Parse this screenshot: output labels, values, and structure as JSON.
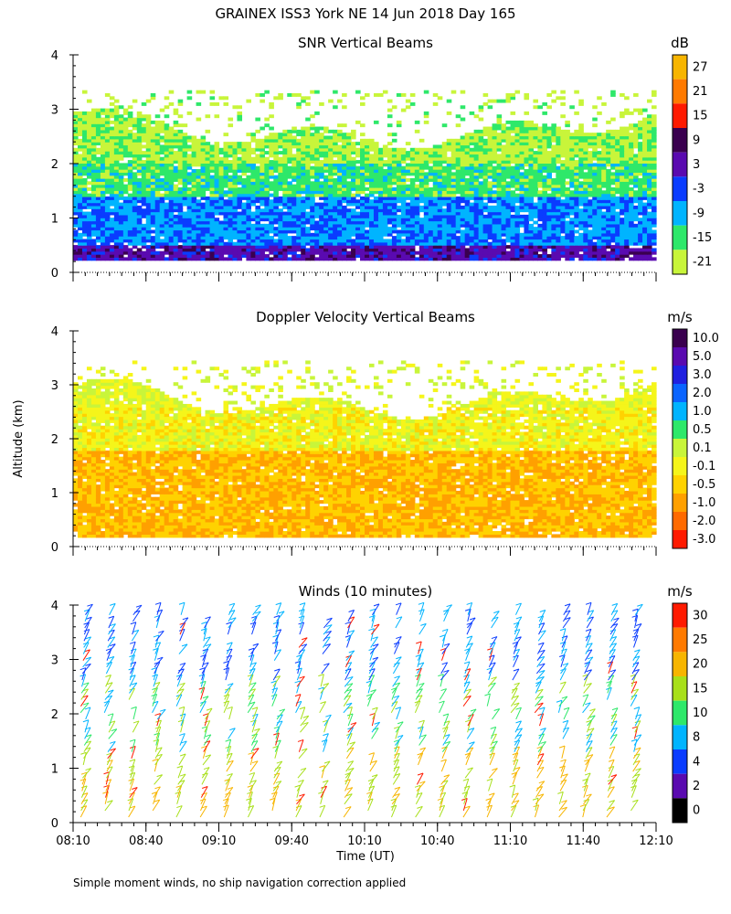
{
  "figure": {
    "title": "GRAINEX ISS3 York NE  14 Jun 2018 Day 165",
    "ylabel": "Altitude (km)",
    "xlabel": "Time (UT)",
    "footnote": "Simple moment winds, no ship navigation correction applied"
  },
  "chart_data": [
    {
      "type": "heatmap",
      "title": "SNR Vertical Beams",
      "xlabel": "",
      "ylabel": "Altitude (km)",
      "ylim": [
        0,
        4
      ],
      "y_ticks": [
        "0",
        "1",
        "2",
        "3",
        "4"
      ],
      "x_ticks": [],
      "colorbar": {
        "unit": "dB",
        "levels": [
          "27",
          "21",
          "15",
          "9",
          "3",
          "-3",
          "-9",
          "-15",
          "-21"
        ],
        "colors": [
          "#f7b500",
          "#ff7a00",
          "#ff1a00",
          "#3a004f",
          "#5a0ab0",
          "#0a3cff",
          "#00b4ff",
          "#2ee86a",
          "#c8f53a"
        ]
      },
      "layers": [
        {
          "altitude_range_km": [
            0.2,
            0.5
          ],
          "snr_db": 3
        },
        {
          "altitude_range_km": [
            0.5,
            1.4
          ],
          "snr_db": -6
        },
        {
          "altitude_range_km": [
            1.4,
            2.0
          ],
          "snr_db": -14
        },
        {
          "altitude_range_km": [
            2.0,
            3.3
          ],
          "snr_db": -19
        }
      ]
    },
    {
      "type": "heatmap",
      "title": "Doppler Velocity Vertical Beams",
      "xlabel": "",
      "ylabel": "Altitude (km)",
      "ylim": [
        0,
        4
      ],
      "y_ticks": [
        "0",
        "1",
        "2",
        "3",
        "4"
      ],
      "x_ticks": [],
      "colorbar": {
        "unit": "m/s",
        "levels": [
          "10.0",
          "5.0",
          "3.0",
          "2.0",
          "1.0",
          "0.5",
          "0.1",
          "-0.1",
          "-0.5",
          "-1.0",
          "-2.0",
          "-3.0"
        ],
        "colors": [
          "#3a004f",
          "#5a0ab0",
          "#2020e0",
          "#0a64ff",
          "#00b4ff",
          "#2ee86a",
          "#c8f53a",
          "#f5f51a",
          "#ffd200",
          "#ffa000",
          "#ff6a00",
          "#ff1a00"
        ]
      },
      "layers": [
        {
          "altitude_range_km": [
            0.2,
            1.8
          ],
          "velocity_ms": -0.4
        },
        {
          "altitude_range_km": [
            1.8,
            2.6
          ],
          "velocity_ms": 0.0
        },
        {
          "altitude_range_km": [
            2.6,
            3.4
          ],
          "velocity_ms": 0.2
        }
      ]
    },
    {
      "type": "scatter",
      "title": "Winds (10 minutes)",
      "xlabel": "Time (UT)",
      "ylabel": "Altitude (km)",
      "ylim": [
        0,
        4
      ],
      "y_ticks": [
        "0",
        "1",
        "2",
        "3",
        "4"
      ],
      "x_ticks": [
        "08:10",
        "08:40",
        "09:10",
        "09:40",
        "10:10",
        "10:40",
        "11:10",
        "11:40",
        "12:10"
      ],
      "colorbar": {
        "unit": "m/s",
        "levels": [
          "30",
          "25",
          "20",
          "15",
          "10",
          "8",
          "4",
          "2",
          "0"
        ],
        "colors": [
          "#ff1a00",
          "#ff7a00",
          "#f7b500",
          "#a8e01a",
          "#2ee86a",
          "#00b4ff",
          "#0a3cff",
          "#5a0ab0",
          "#000000"
        ]
      },
      "profiles_time_range": [
        "08:10",
        "12:10"
      ],
      "profile_count": 24,
      "altitude_range_km": [
        0.1,
        4.0
      ]
    }
  ]
}
